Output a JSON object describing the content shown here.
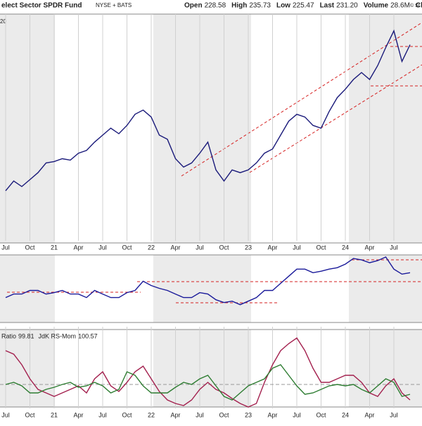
{
  "header": {
    "title": "elect Sector SPDR Fund",
    "exchange": "NYSE + BATS",
    "corner_date": "20",
    "copyright": "© St",
    "quote": [
      {
        "label": "Open",
        "value": "228.58"
      },
      {
        "label": "High",
        "value": "235.73"
      },
      {
        "label": "Low",
        "value": "225.47"
      },
      {
        "label": "Last",
        "value": "231.20"
      },
      {
        "label": "Volume",
        "value": "28.6M"
      },
      {
        "label": "Chg",
        "value": "-"
      }
    ]
  },
  "chart_data": [
    {
      "type": "line",
      "panel": "price",
      "categories": [
        "Jul",
        null,
        null,
        "Oct",
        null,
        null,
        "21",
        null,
        null,
        "Apr",
        null,
        null,
        "Jul",
        null,
        null,
        "Oct",
        null,
        null,
        "22",
        null,
        null,
        "Apr",
        null,
        null,
        "Jul",
        null,
        null,
        "Oct",
        null,
        null,
        "23",
        null,
        null,
        "Apr",
        null,
        null,
        "Jul",
        null,
        null,
        "Oct",
        null,
        null,
        "24",
        null,
        null,
        "Apr",
        null,
        null,
        "Jul",
        null,
        null
      ],
      "ylim": [
        90,
        250
      ],
      "grid": true,
      "series": [
        {
          "color": "#1a1a7a",
          "values": [
            125,
            132,
            128,
            133,
            138,
            145,
            146,
            148,
            147,
            152,
            154,
            160,
            165,
            170,
            166,
            172,
            180,
            183,
            178,
            165,
            162,
            148,
            142,
            145,
            152,
            160,
            140,
            132,
            140,
            138,
            140,
            145,
            152,
            155,
            165,
            175,
            180,
            178,
            172,
            170,
            182,
            192,
            198,
            205,
            210,
            205,
            215,
            228,
            240,
            218,
            230
          ]
        }
      ]
    },
    {
      "type": "line",
      "panel": "relative",
      "ylim": [
        0,
        95
      ],
      "series": [
        {
          "color": "#1a1a9a",
          "values": [
            35,
            40,
            40,
            45,
            45,
            40,
            42,
            45,
            40,
            40,
            35,
            45,
            40,
            35,
            35,
            42,
            45,
            58,
            52,
            48,
            45,
            40,
            35,
            35,
            42,
            40,
            32,
            28,
            30,
            25,
            30,
            35,
            45,
            45,
            55,
            65,
            75,
            75,
            70,
            72,
            75,
            77,
            82,
            90,
            88,
            84,
            87,
            92,
            75,
            68,
            70
          ]
        }
      ]
    },
    {
      "type": "line",
      "panel": "rrg",
      "categories": [
        "Jul",
        null,
        null,
        "Oct",
        null,
        null,
        "21",
        null,
        null,
        "Apr",
        null,
        null,
        "Jul",
        null,
        null,
        "Oct",
        null,
        null,
        "22",
        null,
        null,
        "Apr",
        null,
        null,
        "Jul",
        null,
        null,
        "Oct",
        null,
        null,
        "23",
        null,
        null,
        "Apr",
        null,
        null,
        "Jul",
        null,
        null,
        "Oct",
        null,
        null,
        "24",
        null,
        null,
        "Apr",
        null,
        null,
        "Jul",
        null,
        null
      ],
      "ylim": [
        -10,
        100
      ],
      "reference_line": 22,
      "series": [
        {
          "name": "Ratio",
          "last": "99.81",
          "color": "#a3204e",
          "values": [
            70,
            65,
            50,
            30,
            15,
            10,
            5,
            10,
            15,
            20,
            10,
            30,
            40,
            20,
            12,
            25,
            40,
            48,
            30,
            12,
            0,
            -5,
            -8,
            0,
            15,
            25,
            15,
            10,
            2,
            -5,
            -10,
            -5,
            25,
            50,
            70,
            80,
            88,
            70,
            45,
            25,
            25,
            30,
            35,
            35,
            25,
            10,
            5,
            20,
            30,
            10,
            0
          ]
        },
        {
          "name": "JdK RS-Mom",
          "last": "100.57",
          "color": "#2e7d32",
          "values": [
            22,
            25,
            20,
            10,
            10,
            15,
            18,
            22,
            25,
            18,
            20,
            25,
            20,
            10,
            15,
            40,
            35,
            20,
            10,
            10,
            10,
            18,
            25,
            22,
            30,
            35,
            20,
            5,
            0,
            10,
            20,
            25,
            30,
            45,
            50,
            35,
            20,
            8,
            10,
            15,
            20,
            22,
            20,
            22,
            15,
            10,
            20,
            30,
            25,
            5,
            8
          ]
        }
      ]
    }
  ]
}
